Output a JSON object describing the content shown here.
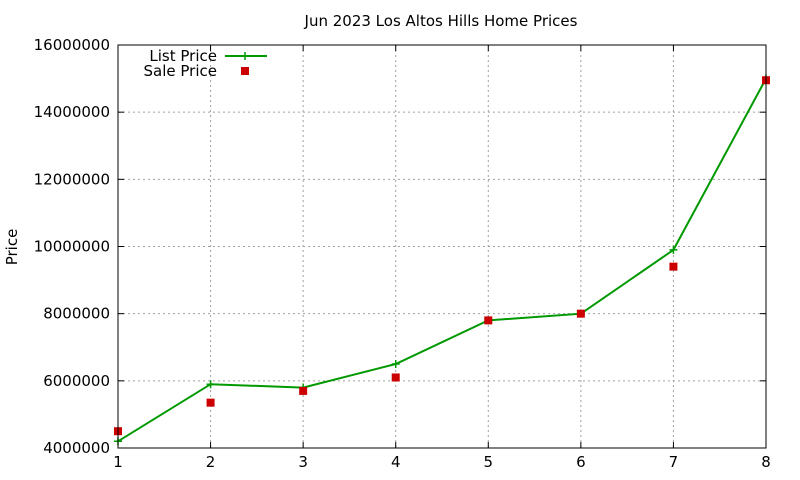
{
  "chart_data": {
    "type": "line",
    "title": "Jun 2023 Los Altos Hills Home Prices",
    "xlabel": "",
    "ylabel": "Price",
    "x": [
      1,
      2,
      3,
      4,
      5,
      6,
      7,
      8
    ],
    "xlim": [
      1,
      8
    ],
    "ylim": [
      4000000,
      16000000
    ],
    "x_ticks": [
      "1",
      "2",
      "3",
      "4",
      "5",
      "6",
      "7",
      "8"
    ],
    "y_ticks": [
      "4000000",
      "6000000",
      "8000000",
      "10000000",
      "12000000",
      "14000000",
      "16000000"
    ],
    "grid": true,
    "legend_position": "top-left",
    "series": [
      {
        "name": "List Price",
        "style": "line with plus markers",
        "color": "#009900",
        "values": [
          4200000,
          5900000,
          5800000,
          6500000,
          7800000,
          8000000,
          9900000,
          15000000
        ]
      },
      {
        "name": "Sale Price",
        "style": "square points",
        "color": "#cc0000",
        "values": [
          4500000,
          5350000,
          5700000,
          6100000,
          7800000,
          8000000,
          9400000,
          14950000
        ]
      }
    ]
  }
}
